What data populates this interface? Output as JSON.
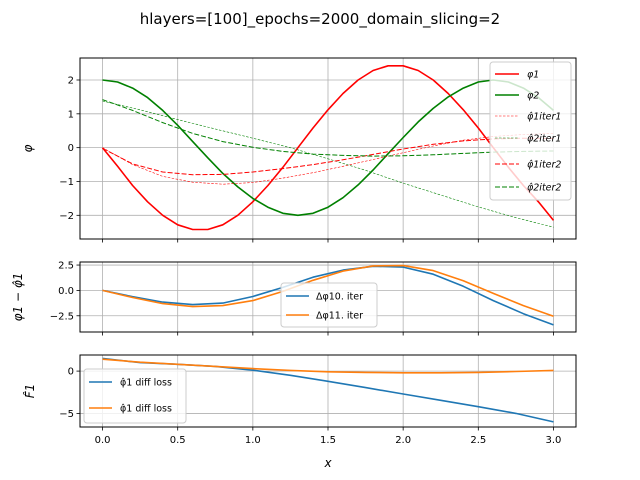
{
  "figure": {
    "suptitle": "hlayers=[100]_epochs=2000_domain_slicing=2",
    "xlabel": "x"
  },
  "colors": {
    "red": "#ff0000",
    "green": "#008000",
    "blue": "#1f77b4",
    "orange": "#ff7f0e",
    "grid": "#b0b0b0"
  },
  "chart_data": [
    {
      "type": "line",
      "ylabel": "φ",
      "xlim": [
        -0.15,
        3.15
      ],
      "ylim": [
        -2.7,
        2.65
      ],
      "grid": true,
      "legend_position": "top-right",
      "x_ticks": [
        "0.0",
        "0.5",
        "1.0",
        "1.5",
        "2.0",
        "2.5",
        "3.0"
      ],
      "y_ticks": [
        "−2",
        "−1",
        "0",
        "1",
        "2"
      ],
      "series": [
        {
          "name": "φ1",
          "color": "#ff0000",
          "style": "solid",
          "points": [
            [
              0,
              0
            ],
            [
              0.1,
              -0.55
            ],
            [
              0.2,
              -1.12
            ],
            [
              0.3,
              -1.6
            ],
            [
              0.4,
              -2.0
            ],
            [
              0.5,
              -2.28
            ],
            [
              0.6,
              -2.42
            ],
            [
              0.7,
              -2.42
            ],
            [
              0.8,
              -2.28
            ],
            [
              0.9,
              -2.0
            ],
            [
              1.0,
              -1.6
            ],
            [
              1.1,
              -1.12
            ],
            [
              1.2,
              -0.58
            ],
            [
              1.3,
              0.0
            ],
            [
              1.4,
              0.58
            ],
            [
              1.5,
              1.12
            ],
            [
              1.6,
              1.6
            ],
            [
              1.7,
              2.0
            ],
            [
              1.8,
              2.28
            ],
            [
              1.9,
              2.42
            ],
            [
              2.0,
              2.42
            ],
            [
              2.1,
              2.28
            ],
            [
              2.2,
              2.0
            ],
            [
              2.3,
              1.6
            ],
            [
              2.4,
              1.12
            ],
            [
              2.5,
              0.58
            ],
            [
              2.6,
              0.0
            ],
            [
              2.7,
              -0.58
            ],
            [
              2.8,
              -1.12
            ],
            [
              2.9,
              -1.6
            ],
            [
              3.0,
              -2.15
            ]
          ]
        },
        {
          "name": "φ2",
          "color": "#008000",
          "style": "solid",
          "points": [
            [
              0,
              2.0
            ],
            [
              0.1,
              1.94
            ],
            [
              0.2,
              1.76
            ],
            [
              0.3,
              1.48
            ],
            [
              0.4,
              1.1
            ],
            [
              0.5,
              0.66
            ],
            [
              0.6,
              0.18
            ],
            [
              0.7,
              -0.3
            ],
            [
              0.8,
              -0.76
            ],
            [
              0.9,
              -1.16
            ],
            [
              1.0,
              -1.5
            ],
            [
              1.1,
              -1.76
            ],
            [
              1.2,
              -1.94
            ],
            [
              1.3,
              -2.0
            ],
            [
              1.4,
              -1.94
            ],
            [
              1.5,
              -1.76
            ],
            [
              1.6,
              -1.48
            ],
            [
              1.7,
              -1.1
            ],
            [
              1.8,
              -0.66
            ],
            [
              1.9,
              -0.18
            ],
            [
              2.0,
              0.3
            ],
            [
              2.1,
              0.76
            ],
            [
              2.2,
              1.16
            ],
            [
              2.3,
              1.5
            ],
            [
              2.4,
              1.76
            ],
            [
              2.5,
              1.94
            ],
            [
              2.6,
              2.0
            ],
            [
              2.7,
              1.94
            ],
            [
              2.8,
              1.76
            ],
            [
              2.9,
              1.48
            ],
            [
              3.0,
              1.1
            ]
          ]
        },
        {
          "name": "φ1iter1",
          "color": "#ff0000",
          "style": "thin-dashed",
          "points": [
            [
              0,
              0
            ],
            [
              0.2,
              -0.5
            ],
            [
              0.4,
              -0.85
            ],
            [
              0.6,
              -1.02
            ],
            [
              0.8,
              -1.08
            ],
            [
              1.0,
              -1.03
            ],
            [
              1.2,
              -0.9
            ],
            [
              1.4,
              -0.74
            ],
            [
              1.6,
              -0.55
            ],
            [
              1.8,
              -0.35
            ],
            [
              2.0,
              -0.15
            ],
            [
              2.2,
              0.05
            ],
            [
              2.4,
              0.22
            ],
            [
              2.6,
              0.33
            ],
            [
              2.8,
              0.39
            ],
            [
              3.0,
              0.42
            ]
          ]
        },
        {
          "name": "φ2iter1",
          "color": "#008000",
          "style": "thin-dashed",
          "points": [
            [
              0,
              1.38
            ],
            [
              0.25,
              1.12
            ],
            [
              0.5,
              0.83
            ],
            [
              0.75,
              0.55
            ],
            [
              1.0,
              0.28
            ],
            [
              1.25,
              0.0
            ],
            [
              1.5,
              -0.33
            ],
            [
              1.75,
              -0.67
            ],
            [
              2.0,
              -1.05
            ],
            [
              2.25,
              -1.4
            ],
            [
              2.5,
              -1.75
            ],
            [
              2.75,
              -2.07
            ],
            [
              3.0,
              -2.35
            ]
          ]
        },
        {
          "name": "φ1iter2",
          "color": "#ff0000",
          "style": "dashed",
          "points": [
            [
              0,
              -0.02
            ],
            [
              0.2,
              -0.48
            ],
            [
              0.4,
              -0.72
            ],
            [
              0.6,
              -0.8
            ],
            [
              0.8,
              -0.79
            ],
            [
              1.0,
              -0.72
            ],
            [
              1.2,
              -0.62
            ],
            [
              1.4,
              -0.5
            ],
            [
              1.6,
              -0.36
            ],
            [
              1.8,
              -0.2
            ],
            [
              2.0,
              -0.04
            ],
            [
              2.2,
              0.1
            ],
            [
              2.4,
              0.2
            ],
            [
              2.6,
              0.26
            ],
            [
              2.8,
              0.28
            ],
            [
              3.0,
              0.27
            ]
          ]
        },
        {
          "name": "φ2iter2",
          "color": "#008000",
          "style": "dashed",
          "points": [
            [
              0,
              1.42
            ],
            [
              0.2,
              1.1
            ],
            [
              0.4,
              0.74
            ],
            [
              0.6,
              0.42
            ],
            [
              0.8,
              0.18
            ],
            [
              1.0,
              0.01
            ],
            [
              1.2,
              -0.11
            ],
            [
              1.4,
              -0.19
            ],
            [
              1.6,
              -0.23
            ],
            [
              1.8,
              -0.25
            ],
            [
              2.0,
              -0.24
            ],
            [
              2.2,
              -0.21
            ],
            [
              2.4,
              -0.17
            ],
            [
              2.6,
              -0.13
            ],
            [
              2.8,
              -0.11
            ],
            [
              3.0,
              -0.1
            ]
          ]
        }
      ]
    },
    {
      "type": "line",
      "ylabel": "φ1 − φ̂1",
      "xlim": [
        -0.15,
        3.15
      ],
      "ylim": [
        -4.1,
        2.8
      ],
      "grid": true,
      "legend_position": "lower-center",
      "x_ticks": [
        "0.0",
        "0.5",
        "1.0",
        "1.5",
        "2.0",
        "2.5",
        "3.0"
      ],
      "y_ticks": [
        "−2.5",
        "0.0",
        "2.5"
      ],
      "series": [
        {
          "name": "Δφ10. iter",
          "color": "#1f77b4",
          "style": "solid",
          "points": [
            [
              0,
              0
            ],
            [
              0.2,
              -0.62
            ],
            [
              0.4,
              -1.15
            ],
            [
              0.6,
              -1.4
            ],
            [
              0.8,
              -1.25
            ],
            [
              1.0,
              -0.6
            ],
            [
              1.2,
              0.3
            ],
            [
              1.4,
              1.3
            ],
            [
              1.6,
              2.0
            ],
            [
              1.8,
              2.38
            ],
            [
              2.0,
              2.3
            ],
            [
              2.2,
              1.6
            ],
            [
              2.4,
              0.4
            ],
            [
              2.6,
              -1.0
            ],
            [
              2.8,
              -2.3
            ],
            [
              3.0,
              -3.4
            ]
          ]
        },
        {
          "name": "Δφ11. iter",
          "color": "#ff7f0e",
          "style": "solid",
          "points": [
            [
              0,
              0
            ],
            [
              0.2,
              -0.7
            ],
            [
              0.4,
              -1.3
            ],
            [
              0.6,
              -1.6
            ],
            [
              0.8,
              -1.5
            ],
            [
              1.0,
              -1.0
            ],
            [
              1.2,
              -0.1
            ],
            [
              1.4,
              1.0
            ],
            [
              1.6,
              1.9
            ],
            [
              1.8,
              2.42
            ],
            [
              2.0,
              2.45
            ],
            [
              2.2,
              1.95
            ],
            [
              2.4,
              0.95
            ],
            [
              2.6,
              -0.3
            ],
            [
              2.8,
              -1.5
            ],
            [
              3.0,
              -2.55
            ]
          ]
        }
      ]
    },
    {
      "type": "line",
      "ylabel": "F̂1",
      "xlim": [
        -0.15,
        3.15
      ],
      "ylim": [
        -6.6,
        1.9
      ],
      "grid": true,
      "legend_position": "lower-left",
      "x_ticks": [
        "0.0",
        "0.5",
        "1.0",
        "1.5",
        "2.0",
        "2.5",
        "3.0"
      ],
      "y_ticks": [
        "−5",
        "0"
      ],
      "series": [
        {
          "name": "φ̂1 diff loss",
          "color": "#1f77b4",
          "style": "solid",
          "points": [
            [
              0,
              1.5
            ],
            [
              0.25,
              1.0
            ],
            [
              0.5,
              0.8
            ],
            [
              0.75,
              0.55
            ],
            [
              1.0,
              0.1
            ],
            [
              1.25,
              -0.5
            ],
            [
              1.5,
              -1.2
            ],
            [
              1.75,
              -1.95
            ],
            [
              2.0,
              -2.7
            ],
            [
              2.25,
              -3.45
            ],
            [
              2.5,
              -4.2
            ],
            [
              2.75,
              -5.0
            ],
            [
              3.0,
              -6.0
            ]
          ]
        },
        {
          "name": "φ̂1 diff loss",
          "color": "#ff7f0e",
          "style": "solid",
          "points": [
            [
              0,
              1.4
            ],
            [
              0.25,
              1.05
            ],
            [
              0.5,
              0.8
            ],
            [
              0.75,
              0.55
            ],
            [
              1.0,
              0.3
            ],
            [
              1.25,
              0.08
            ],
            [
              1.5,
              -0.08
            ],
            [
              1.75,
              -0.16
            ],
            [
              2.0,
              -0.2
            ],
            [
              2.25,
              -0.2
            ],
            [
              2.5,
              -0.15
            ],
            [
              2.75,
              -0.05
            ],
            [
              3.0,
              0.08
            ]
          ]
        }
      ]
    }
  ],
  "legend_labels": {
    "top": [
      "φ1",
      "φ2",
      "φ̂1iter1",
      "φ̂2iter1",
      "φ̂1iter2",
      "φ̂2iter2"
    ],
    "middle": [
      "Δφ10. iter",
      "Δφ11. iter"
    ],
    "bottom": [
      "φ̂1 diff loss",
      "φ̂1 diff loss"
    ]
  }
}
